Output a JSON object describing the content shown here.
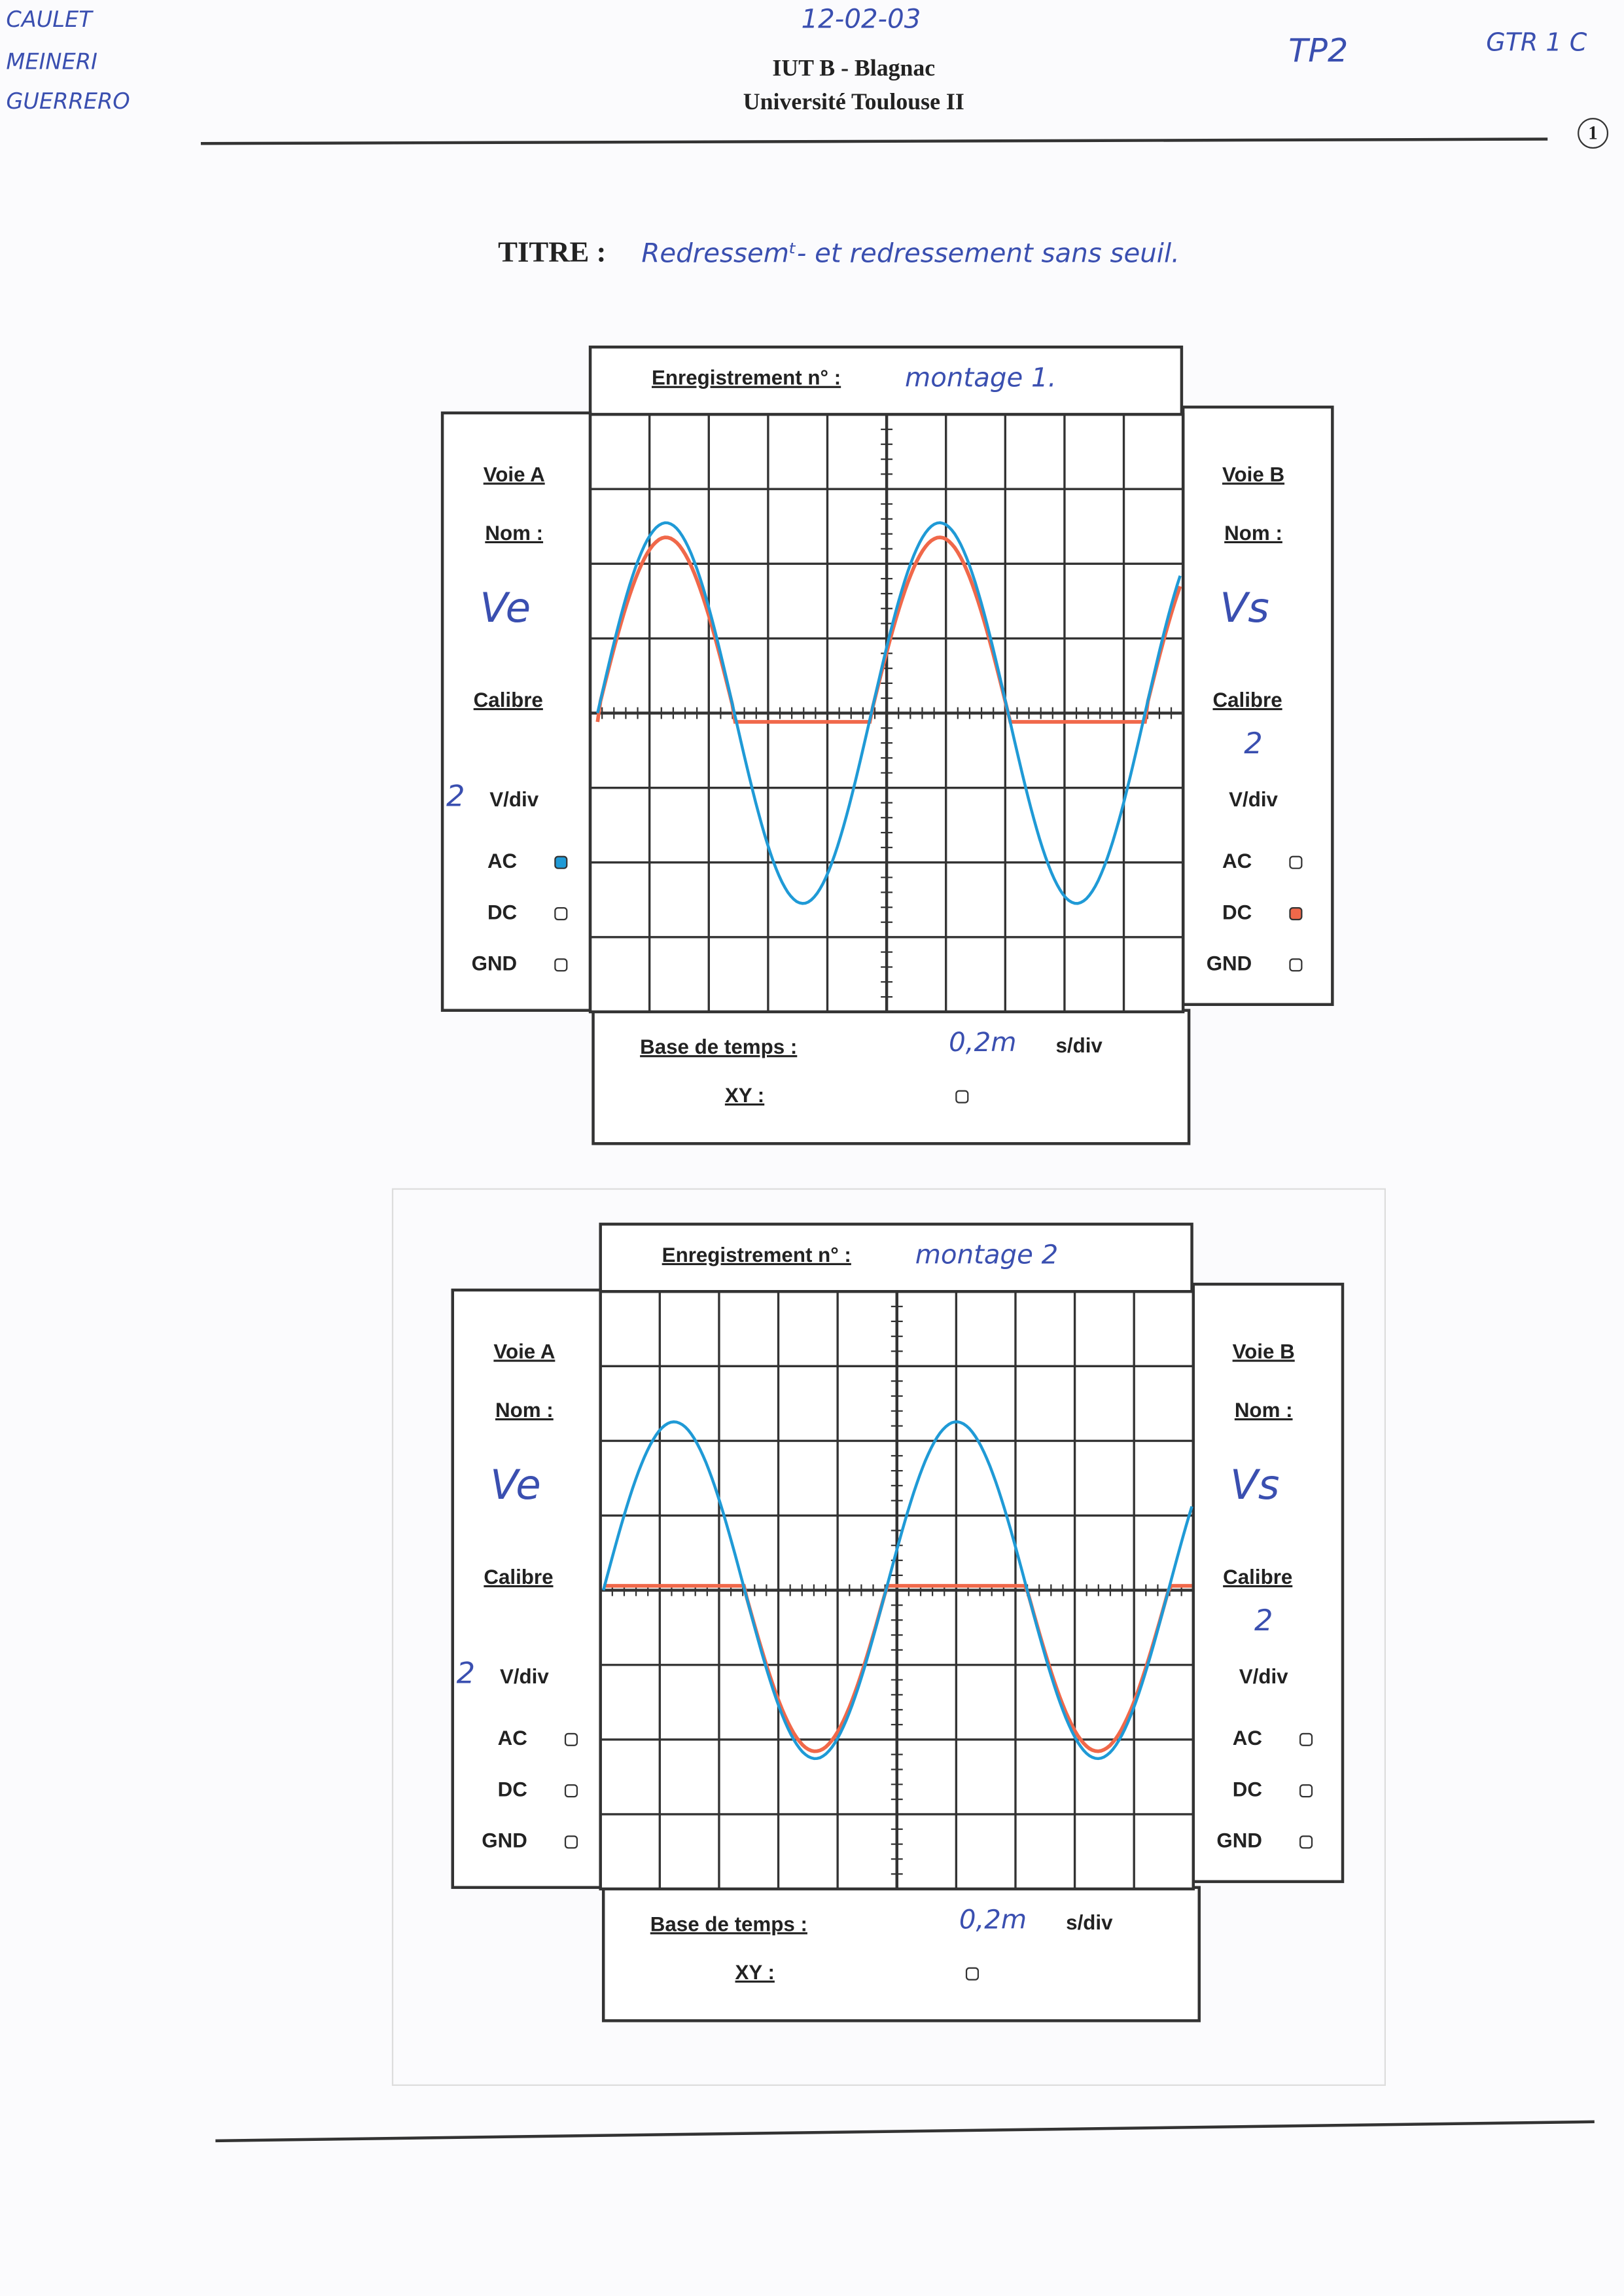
{
  "header": {
    "authors": [
      "CAULET",
      "MEINERI",
      "GUERRERO"
    ],
    "date": "12-02-03",
    "institution": "IUT B - Blagnac",
    "university": "Université Toulouse II",
    "tp": "TP2",
    "group": "GTR 1 C",
    "page": "1"
  },
  "title": {
    "label": "TITRE :",
    "text": "Redressemᵗ- et redressement sans seuil."
  },
  "recordings": [
    {
      "label": "Enregistrement n° :",
      "name": "montage 1.",
      "channel_a": {
        "label": "Voie A",
        "name_label": "Nom :",
        "name": "Ve",
        "calibre_label": "Calibre",
        "calibre": "2",
        "unit": "V/div",
        "coupling": [
          {
            "label": "AC",
            "checked": true
          },
          {
            "label": "DC"
          },
          {
            "label": "GND"
          }
        ]
      },
      "channel_b": {
        "label": "Voie B",
        "name_label": "Nom :",
        "name": "Vs",
        "calibre_label": "Calibre",
        "calibre": "2",
        "unit": "V/div",
        "coupling": [
          {
            "label": "AC"
          },
          {
            "label": "DC",
            "checked": true
          },
          {
            "label": "GND"
          }
        ]
      },
      "timebase_label": "Base de temps :",
      "timebase": "0,2m",
      "timebase_unit": "s/div",
      "xy_label": "XY :"
    },
    {
      "label": "Enregistrement n° :",
      "name": "montage 2",
      "channel_a": {
        "label": "Voie A",
        "name_label": "Nom :",
        "name": "Ve",
        "calibre_label": "Calibre",
        "calibre": "2",
        "unit": "V/div",
        "coupling": [
          {
            "label": "AC"
          },
          {
            "label": "DC"
          },
          {
            "label": "GND"
          }
        ]
      },
      "channel_b": {
        "label": "Voie B",
        "name_label": "Nom :",
        "name": "Vs",
        "calibre_label": "Calibre",
        "calibre": "2",
        "unit": "V/div",
        "coupling": [
          {
            "label": "AC"
          },
          {
            "label": "DC"
          },
          {
            "label": "GND"
          }
        ]
      },
      "timebase_label": "Base de temps :",
      "timebase": "0,2m",
      "timebase_unit": "s/div",
      "xy_label": "XY :"
    }
  ]
}
